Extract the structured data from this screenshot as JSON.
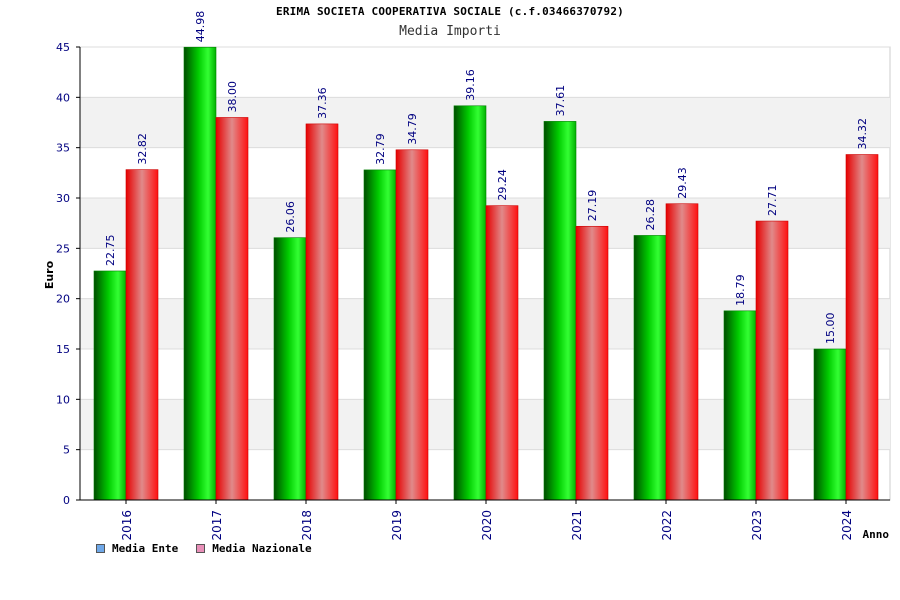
{
  "chart_data": {
    "type": "bar",
    "title": "ERIMA SOCIETA COOPERATIVA SOCIALE (c.f.03466370792)",
    "subtitle": "Media Importi",
    "xlabel": "Anno",
    "ylabel": "Euro",
    "ylim": [
      0,
      45
    ],
    "yticks": [
      0,
      5,
      10,
      15,
      20,
      25,
      30,
      35,
      40,
      45
    ],
    "categories": [
      "2016",
      "2017",
      "2018",
      "2019",
      "2020",
      "2021",
      "2022",
      "2023",
      "2024"
    ],
    "series": [
      {
        "name": "Media Ente",
        "values": [
          22.75,
          44.98,
          26.06,
          32.79,
          39.16,
          37.61,
          26.28,
          18.79,
          15.0
        ],
        "labels": [
          "22.75",
          "44.98",
          "26.06",
          "32.79",
          "39.16",
          "37.61",
          "26.28",
          "18.79",
          "15.00"
        ],
        "color": "#00c000"
      },
      {
        "name": "Media Nazionale",
        "values": [
          32.82,
          38.0,
          37.36,
          34.79,
          29.24,
          27.19,
          29.43,
          27.71,
          34.32
        ],
        "labels": [
          "32.82",
          "38.00",
          "37.36",
          "34.79",
          "29.24",
          "27.19",
          "29.43",
          "27.71",
          "34.32"
        ],
        "color": "#ff0000"
      }
    ],
    "legend": {
      "position": "bottom-left",
      "swatch_colors": [
        "#6fa8e8",
        "#e88fb8"
      ]
    },
    "grid": true,
    "colors": {
      "axis_label": "#000080",
      "band": "#f2f2f2",
      "gridline": "#dcdcdc"
    }
  }
}
